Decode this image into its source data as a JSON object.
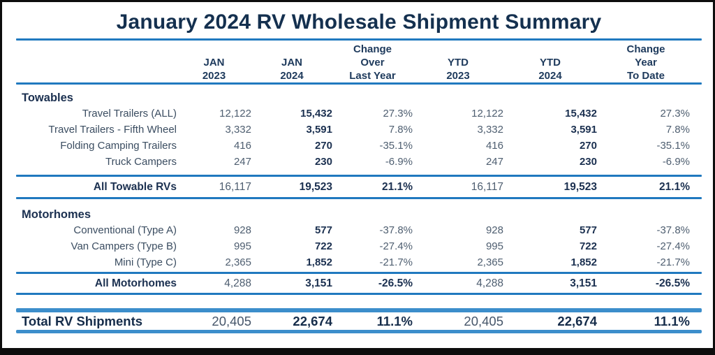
{
  "colors": {
    "title_navy": "#14304f",
    "bold_navy": "#1b3050",
    "regular_number_gray": "#4e5e70",
    "thin_rule_blue": "#2079bf",
    "thick_rule_blue": "#3c8ecb",
    "frame_border_black": "#0d0d0d"
  },
  "chart_data": {
    "type": "table",
    "title": "January 2024 RV Wholesale Shipment Summary",
    "column_headers": [
      {
        "line1": "",
        "line2": "JAN",
        "line3": "2023"
      },
      {
        "line1": "",
        "line2": "JAN",
        "line3": "2024"
      },
      {
        "line1": "Change",
        "line2": "Over",
        "line3": "Last Year"
      },
      {
        "line1": "",
        "line2": "YTD",
        "line3": "2023"
      },
      {
        "line1": "",
        "line2": "YTD",
        "line3": "2024"
      },
      {
        "line1": "Change",
        "line2": "Year",
        "line3": "To Date"
      }
    ],
    "sections": {
      "towables": {
        "label": "Towables",
        "rows": [
          {
            "label": "Travel Trailers (ALL)",
            "values": [
              "12,122",
              "15,432",
              "27.3%",
              "12,122",
              "15,432",
              "27.3%"
            ]
          },
          {
            "label": "Travel Trailers - Fifth Wheel",
            "values": [
              "3,332",
              "3,591",
              "7.8%",
              "3,332",
              "3,591",
              "7.8%"
            ]
          },
          {
            "label": "Folding Camping Trailers",
            "values": [
              "416",
              "270",
              "-35.1%",
              "416",
              "270",
              "-35.1%"
            ]
          },
          {
            "label": "Truck Campers",
            "values": [
              "247",
              "230",
              "-6.9%",
              "247",
              "230",
              "-6.9%"
            ]
          }
        ],
        "total": {
          "label": "All Towable RVs",
          "values": [
            "16,117",
            "19,523",
            "21.1%",
            "16,117",
            "19,523",
            "21.1%"
          ]
        }
      },
      "motorhomes": {
        "label": "Motorhomes",
        "rows": [
          {
            "label": "Conventional (Type A)",
            "values": [
              "928",
              "577",
              "-37.8%",
              "928",
              "577",
              "-37.8%"
            ]
          },
          {
            "label": "Van Campers (Type B)",
            "values": [
              "995",
              "722",
              "-27.4%",
              "995",
              "722",
              "-27.4%"
            ]
          },
          {
            "label": "Mini (Type C)",
            "values": [
              "2,365",
              "1,852",
              "-21.7%",
              "2,365",
              "1,852",
              "-21.7%"
            ]
          }
        ],
        "total": {
          "label": "All Motorhomes",
          "values": [
            "4,288",
            "3,151",
            "-26.5%",
            "4,288",
            "3,151",
            "-26.5%"
          ]
        }
      }
    },
    "grand_total": {
      "label": "Total RV Shipments",
      "values": [
        "20,405",
        "22,674",
        "11.1%",
        "20,405",
        "22,674",
        "11.1%"
      ]
    }
  }
}
